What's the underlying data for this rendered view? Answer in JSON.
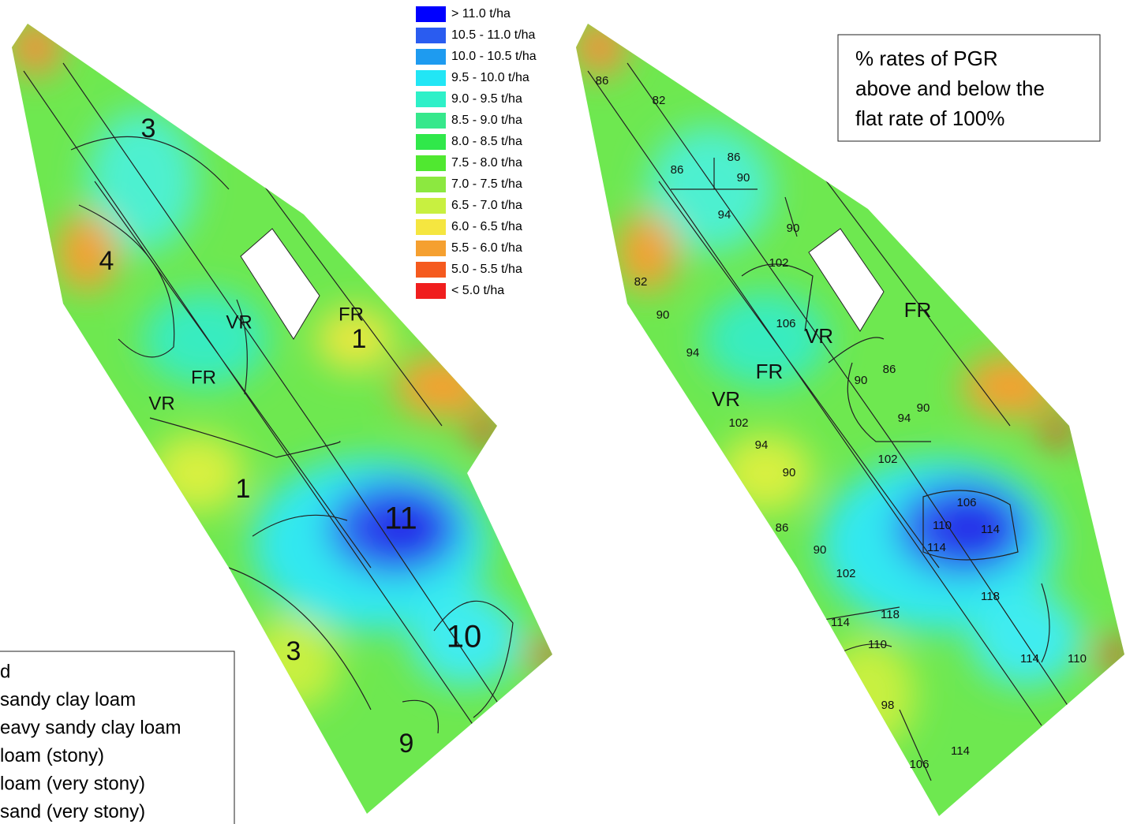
{
  "legend": {
    "items": [
      "> 11.0 t/ha",
      "10.5 - 11.0 t/ha",
      "10.0 - 10.5 t/ha",
      "9.5 - 10.0 t/ha",
      "9.0 - 9.5 t/ha",
      "8.5 - 9.0 t/ha",
      "8.0 - 8.5 t/ha",
      "7.5 - 8.0 t/ha",
      "7.0 - 7.5 t/ha",
      "6.5 - 7.0 t/ha",
      "6.0 - 6.5 t/ha",
      "5.5 - 6.0 t/ha",
      "5.0 - 5.5 t/ha",
      "< 5.0 t/ha"
    ],
    "colors": [
      "#0000ff",
      "#2a5cf0",
      "#1e9bf0",
      "#22e6f5",
      "#2ef0c8",
      "#36e88c",
      "#30e84a",
      "#50e830",
      "#8ce840",
      "#c8f040",
      "#f5e640",
      "#f5a030",
      "#f55a1e",
      "#f01e1e"
    ]
  },
  "soil_legend": {
    "items": [
      "d",
      "sandy clay loam",
      "eavy sandy clay loam",
      "loam (stony)",
      "loam (very stony)",
      "sand (very stony)"
    ]
  },
  "left_map": {
    "labels": [
      "3",
      "4",
      "VR",
      "FR",
      "1",
      "FR",
      "VR",
      "1",
      "11",
      "3",
      "10",
      "9"
    ]
  },
  "right_map": {
    "note": [
      "% rates of PGR",
      "above and below the",
      "flat rate of 100%"
    ],
    "labels": [
      "86",
      "82",
      "86",
      "86",
      "90",
      "94",
      "90",
      "102",
      "82",
      "90",
      "106",
      "VR",
      "FR",
      "94",
      "FR",
      "90",
      "86",
      "VR",
      "102",
      "90",
      "94",
      "94",
      "102",
      "90",
      "106",
      "110",
      "114",
      "114",
      "86",
      "90",
      "102",
      "118",
      "118",
      "114",
      "110",
      "114",
      "110",
      "98",
      "114",
      "106"
    ]
  }
}
